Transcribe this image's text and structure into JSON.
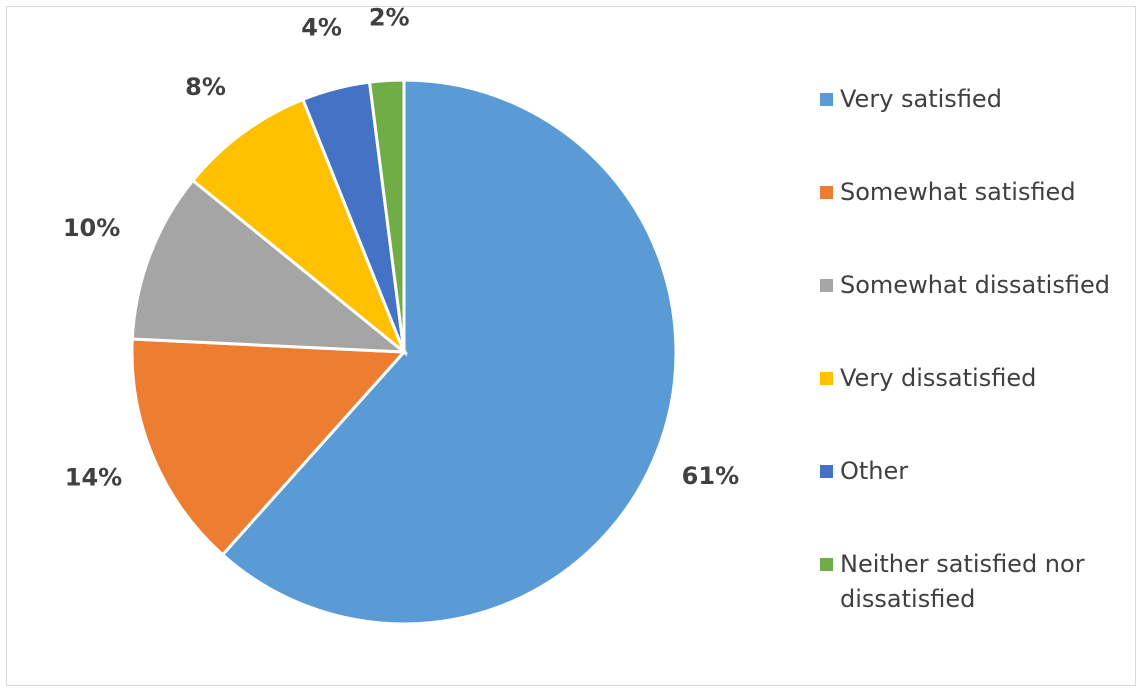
{
  "chart_data": {
    "type": "pie",
    "title": "",
    "slices": [
      {
        "label": "Very satisfied",
        "value": 61,
        "display": "61%",
        "color": "#5b9bd5"
      },
      {
        "label": "Somewhat satisfied",
        "value": 14,
        "display": "14%",
        "color": "#ed7d31"
      },
      {
        "label": "Somewhat dissatisfied",
        "value": 10,
        "display": "10%",
        "color": "#a5a5a5"
      },
      {
        "label": "Very dissatisfied",
        "value": 8,
        "display": "8%",
        "color": "#ffc000"
      },
      {
        "label": "Other",
        "value": 4,
        "display": "4%",
        "color": "#4472c4"
      },
      {
        "label": "Neither satisfied nor dissatisfied",
        "value": 2,
        "display": "2%",
        "color": "#70ad47"
      }
    ],
    "legend_position": "right",
    "start_angle_deg": 0,
    "direction": "clockwise"
  }
}
